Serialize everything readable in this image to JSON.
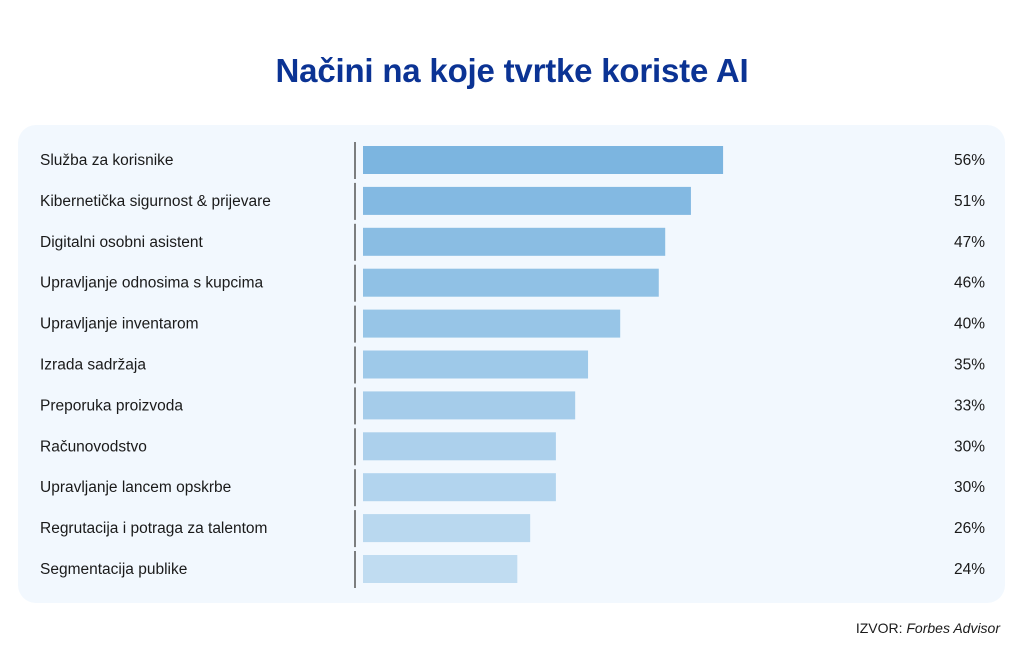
{
  "title": "Načini na koje tvrtke koriste AI",
  "source": {
    "prefix": "IZVOR:",
    "name": "Forbes Advisor"
  },
  "colors": {
    "title": "#0b3394",
    "bar_dark": "#7cb5e0",
    "bar_light": "#c0dcf1",
    "panel": "#f2f8fe"
  },
  "chart_data": {
    "type": "bar",
    "orientation": "horizontal",
    "title": "Načini na koje tvrtke koriste AI",
    "categories": [
      "Služba za korisnike",
      "Kibernetička sigurnost & prijevare",
      "Digitalni osobni asistent",
      "Upravljanje odnosima s kupcima",
      "Upravljanje inventarom",
      "Izrada sadržaja",
      "Preporuka proizvoda",
      "Računovodstvo",
      "Upravljanje lancem opskrbe",
      "Regrutacija i potraga za talentom",
      "Segmentacija publike"
    ],
    "values": [
      56,
      51,
      47,
      46,
      40,
      35,
      33,
      30,
      30,
      26,
      24
    ],
    "value_labels": [
      "56%",
      "51%",
      "47%",
      "46%",
      "40%",
      "35%",
      "33%",
      "30%",
      "30%",
      "26%",
      "24%"
    ],
    "unit": "%",
    "grid": false,
    "legend": "none"
  }
}
